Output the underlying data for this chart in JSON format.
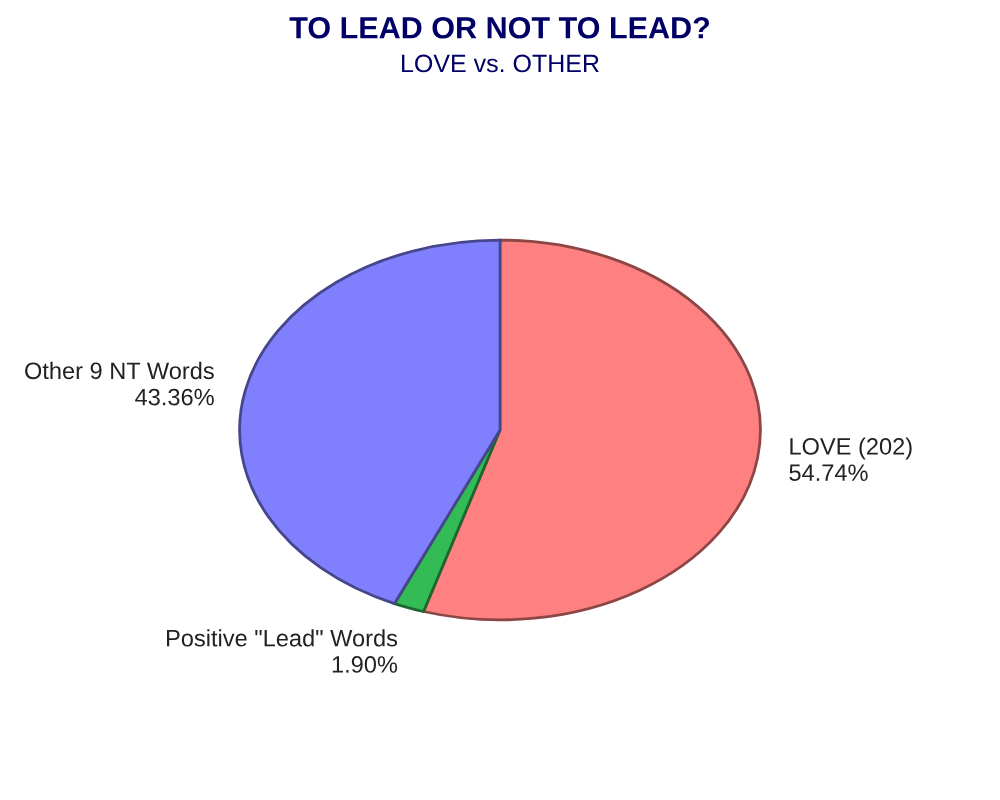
{
  "chart_data": {
    "type": "pie",
    "title": "TO LEAD OR NOT TO LEAD?",
    "subtitle": "LOVE vs. OTHER",
    "categories": [
      "LOVE (202)",
      "Positive \"Lead\" Words",
      "Other 9 NT Words"
    ],
    "values": [
      54.74,
      1.9,
      43.36
    ],
    "value_labels": [
      "54.74%",
      "1.90%",
      "43.36%"
    ],
    "colors": [
      "#ff8080",
      "#33bb55",
      "#8080ff"
    ],
    "legend": false
  }
}
